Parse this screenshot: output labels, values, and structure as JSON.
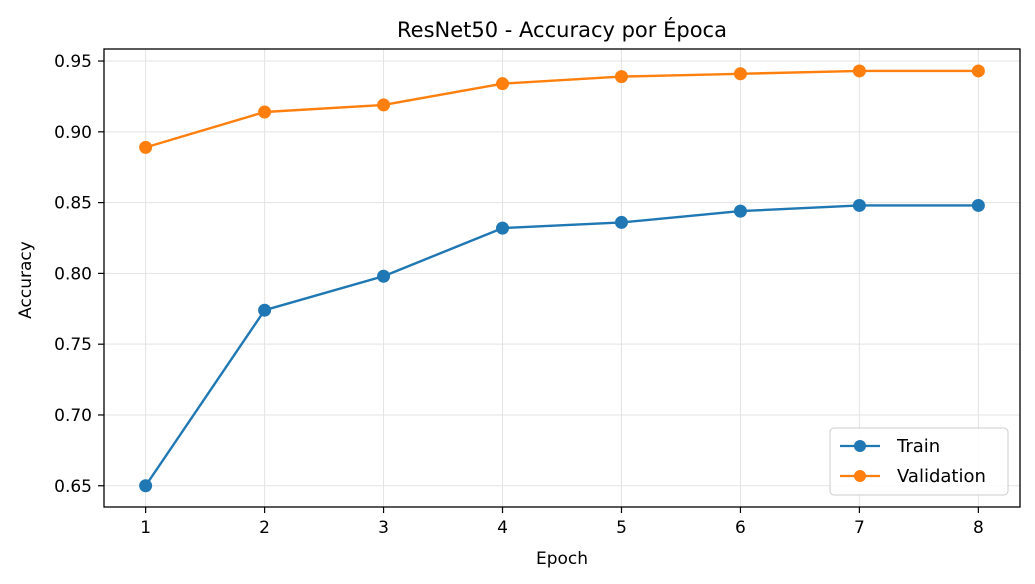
{
  "chart_data": {
    "type": "line",
    "title": "ResNet50 - Accuracy por Época",
    "xlabel": "Epoch",
    "ylabel": "Accuracy",
    "x": [
      1,
      2,
      3,
      4,
      5,
      6,
      7,
      8
    ],
    "xticks": [
      "1",
      "2",
      "3",
      "4",
      "5",
      "6",
      "7",
      "8"
    ],
    "yticks": [
      "0.65",
      "0.70",
      "0.75",
      "0.80",
      "0.85",
      "0.90",
      "0.95"
    ],
    "xlim": [
      0.65,
      8.35
    ],
    "ylim": [
      0.635,
      0.9585
    ],
    "grid": true,
    "legend_position": "lower-right",
    "series": [
      {
        "name": "Train",
        "color": "#1f77b4",
        "marker": "circle",
        "values": [
          0.65,
          0.774,
          0.798,
          0.832,
          0.836,
          0.844,
          0.848,
          0.848
        ]
      },
      {
        "name": "Validation",
        "color": "#ff7f0e",
        "marker": "circle",
        "values": [
          0.889,
          0.914,
          0.919,
          0.934,
          0.939,
          0.941,
          0.943,
          0.943
        ]
      }
    ]
  }
}
